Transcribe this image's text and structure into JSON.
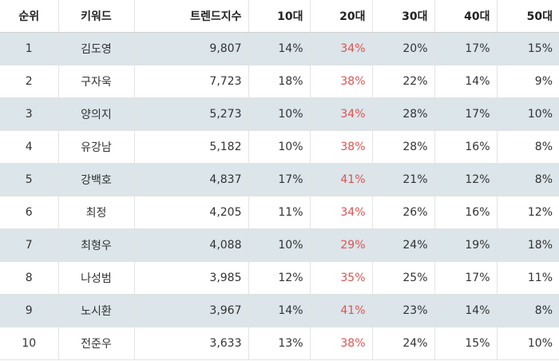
{
  "table": {
    "headers": [
      "순위",
      "키워드",
      "트렌드지수",
      "10대",
      "20대",
      "30대",
      "40대",
      "50대"
    ],
    "highlight_color": "#e0514f",
    "rows": [
      {
        "rank": "1",
        "keyword": "김도영",
        "trend": "9,807",
        "a10": "14%",
        "a20": "34%",
        "a30": "20%",
        "a40": "17%",
        "a50": "15%"
      },
      {
        "rank": "2",
        "keyword": "구자욱",
        "trend": "7,723",
        "a10": "18%",
        "a20": "38%",
        "a30": "22%",
        "a40": "14%",
        "a50": "9%"
      },
      {
        "rank": "3",
        "keyword": "양의지",
        "trend": "5,273",
        "a10": "10%",
        "a20": "34%",
        "a30": "28%",
        "a40": "17%",
        "a50": "10%"
      },
      {
        "rank": "4",
        "keyword": "유강남",
        "trend": "5,182",
        "a10": "10%",
        "a20": "38%",
        "a30": "28%",
        "a40": "16%",
        "a50": "8%"
      },
      {
        "rank": "5",
        "keyword": "강백호",
        "trend": "4,837",
        "a10": "17%",
        "a20": "41%",
        "a30": "21%",
        "a40": "12%",
        "a50": "8%"
      },
      {
        "rank": "6",
        "keyword": "최정",
        "trend": "4,205",
        "a10": "11%",
        "a20": "34%",
        "a30": "26%",
        "a40": "16%",
        "a50": "12%"
      },
      {
        "rank": "7",
        "keyword": "최형우",
        "trend": "4,088",
        "a10": "10%",
        "a20": "29%",
        "a30": "24%",
        "a40": "19%",
        "a50": "18%"
      },
      {
        "rank": "8",
        "keyword": "나성범",
        "trend": "3,985",
        "a10": "12%",
        "a20": "35%",
        "a30": "25%",
        "a40": "17%",
        "a50": "11%"
      },
      {
        "rank": "9",
        "keyword": "노시환",
        "trend": "3,967",
        "a10": "14%",
        "a20": "41%",
        "a30": "23%",
        "a40": "14%",
        "a50": "8%"
      },
      {
        "rank": "10",
        "keyword": "전준우",
        "trend": "3,633",
        "a10": "13%",
        "a20": "38%",
        "a30": "24%",
        "a40": "15%",
        "a50": "10%"
      }
    ]
  }
}
